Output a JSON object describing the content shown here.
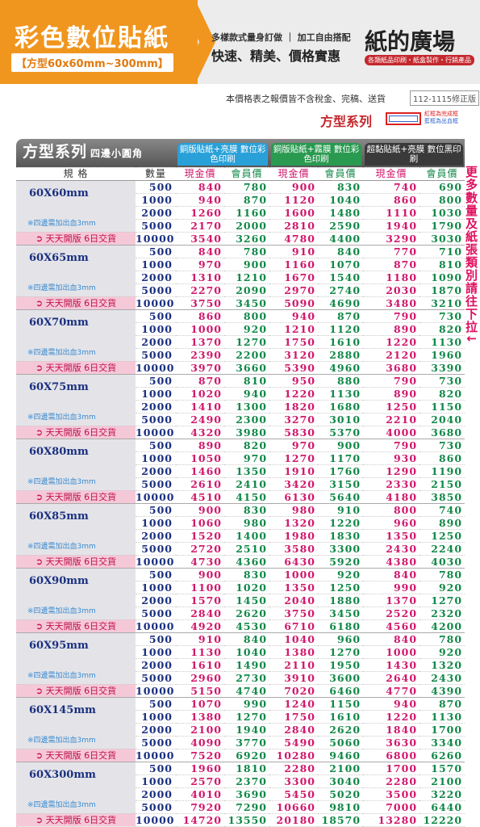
{
  "header": {
    "title": "彩色數位貼紙",
    "subtitle": "【方型60x60mm~300mm】",
    "tagline1": "多樣款式量身訂做",
    "tagline2": "加工自由搭配",
    "slogan": "快速、精美、價格實惠",
    "brand": "紙的廣場",
    "brand_sub": "各類紙品印刷・紙盒製作・行銷產品"
  },
  "notice": "本價格表之報價皆不含稅金、完稿、送貨",
  "version": "112-1115修正版",
  "series_title": "方型系列",
  "legend": [
    "紅框為完成框",
    "藍框為出血框"
  ],
  "side_note": "更多數量及紙張類別請往下拉↓",
  "table": {
    "title": "方型系列",
    "subtitle": "四邊小圓角",
    "products": [
      "銅版貼紙+亮膜 數位彩色印刷",
      "銅版貼紙+霧膜 數位彩色印刷",
      "超黏貼紙+亮膜 數位黑印刷"
    ],
    "columns": [
      "規 格",
      "數量",
      "現金價",
      "會員價",
      "現金價",
      "會員價",
      "現金價",
      "會員價"
    ],
    "groups": [
      {
        "size": "60X60mm",
        "note": "※四邊需加出血3mm",
        "delivery": "天天開版 6日交貨",
        "rows": [
          [
            500,
            840,
            780,
            900,
            830,
            740,
            690
          ],
          [
            1000,
            940,
            870,
            1120,
            1040,
            860,
            800
          ],
          [
            2000,
            1260,
            1160,
            1600,
            1480,
            1110,
            1030
          ],
          [
            5000,
            2170,
            2000,
            2810,
            2590,
            1940,
            1790
          ],
          [
            10000,
            3540,
            3260,
            4780,
            4400,
            3290,
            3030
          ]
        ]
      },
      {
        "size": "60X65mm",
        "note": "※四邊需加出血3mm",
        "delivery": "天天開版 6日交貨",
        "rows": [
          [
            500,
            840,
            780,
            910,
            840,
            770,
            710
          ],
          [
            1000,
            970,
            900,
            1160,
            1070,
            870,
            810
          ],
          [
            2000,
            1310,
            1210,
            1670,
            1540,
            1180,
            1090
          ],
          [
            5000,
            2270,
            2090,
            2970,
            2740,
            2030,
            1870
          ],
          [
            10000,
            3750,
            3450,
            5090,
            4690,
            3480,
            3210
          ]
        ]
      },
      {
        "size": "60X70mm",
        "note": "※四邊需加出血3mm",
        "delivery": "天天開版 6日交貨",
        "rows": [
          [
            500,
            860,
            800,
            940,
            870,
            790,
            730
          ],
          [
            1000,
            1000,
            920,
            1210,
            1120,
            890,
            820
          ],
          [
            2000,
            1370,
            1270,
            1750,
            1610,
            1220,
            1130
          ],
          [
            5000,
            2390,
            2200,
            3120,
            2880,
            2120,
            1960
          ],
          [
            10000,
            3970,
            3660,
            5390,
            4960,
            3680,
            3390
          ]
        ]
      },
      {
        "size": "60X75mm",
        "note": "※四邊需加出血3mm",
        "delivery": "天天開版 6日交貨",
        "rows": [
          [
            500,
            870,
            810,
            950,
            880,
            790,
            730
          ],
          [
            1000,
            1020,
            940,
            1220,
            1130,
            890,
            820
          ],
          [
            2000,
            1410,
            1300,
            1820,
            1680,
            1250,
            1150
          ],
          [
            5000,
            2490,
            2300,
            3270,
            3010,
            2210,
            2040
          ],
          [
            10000,
            4320,
            3980,
            5830,
            5370,
            4000,
            3680
          ]
        ]
      },
      {
        "size": "60X80mm",
        "note": "※四邊需加出血3mm",
        "delivery": "天天開版 6日交貨",
        "rows": [
          [
            500,
            890,
            820,
            970,
            900,
            790,
            730
          ],
          [
            1000,
            1050,
            970,
            1270,
            1170,
            930,
            860
          ],
          [
            2000,
            1460,
            1350,
            1910,
            1760,
            1290,
            1190
          ],
          [
            5000,
            2610,
            2410,
            3420,
            3150,
            2330,
            2150
          ],
          [
            10000,
            4510,
            4150,
            6130,
            5640,
            4180,
            3850
          ]
        ]
      },
      {
        "size": "60X85mm",
        "note": "※四邊需加出血3mm",
        "delivery": "天天開版 6日交貨",
        "rows": [
          [
            500,
            900,
            830,
            980,
            910,
            800,
            740
          ],
          [
            1000,
            1060,
            980,
            1320,
            1220,
            960,
            890
          ],
          [
            2000,
            1520,
            1400,
            1980,
            1830,
            1350,
            1250
          ],
          [
            5000,
            2720,
            2510,
            3580,
            3300,
            2430,
            2240
          ],
          [
            10000,
            4730,
            4360,
            6430,
            5920,
            4380,
            4030
          ]
        ]
      },
      {
        "size": "60X90mm",
        "note": "※四邊需加出血3mm",
        "delivery": "天天開版 6日交貨",
        "rows": [
          [
            500,
            900,
            830,
            1000,
            920,
            840,
            780
          ],
          [
            1000,
            1100,
            1020,
            1350,
            1250,
            990,
            920
          ],
          [
            2000,
            1570,
            1450,
            2040,
            1880,
            1370,
            1270
          ],
          [
            5000,
            2840,
            2620,
            3750,
            3450,
            2520,
            2320
          ],
          [
            10000,
            4920,
            4530,
            6710,
            6180,
            4560,
            4200
          ]
        ]
      },
      {
        "size": "60X95mm",
        "note": "※四邊需加出血3mm",
        "delivery": "天天開版 6日交貨",
        "rows": [
          [
            500,
            910,
            840,
            1040,
            960,
            840,
            780
          ],
          [
            1000,
            1130,
            1040,
            1380,
            1270,
            1000,
            920
          ],
          [
            2000,
            1610,
            1490,
            2110,
            1950,
            1430,
            1320
          ],
          [
            5000,
            2960,
            2730,
            3910,
            3600,
            2640,
            2430
          ],
          [
            10000,
            5150,
            4740,
            7020,
            6460,
            4770,
            4390
          ]
        ]
      },
      {
        "size": "60X145mm",
        "note": "※四邊需加出血3mm",
        "delivery": "天天開版 6日交貨",
        "rows": [
          [
            500,
            1070,
            990,
            1240,
            1150,
            940,
            870
          ],
          [
            1000,
            1380,
            1270,
            1750,
            1610,
            1220,
            1130
          ],
          [
            2000,
            2100,
            1940,
            2840,
            2620,
            1840,
            1700
          ],
          [
            5000,
            4090,
            3770,
            5490,
            5060,
            3630,
            3340
          ],
          [
            10000,
            7520,
            6920,
            10280,
            9460,
            6800,
            6260
          ]
        ]
      },
      {
        "size": "60X300mm",
        "note": "※四邊需加出血3mm",
        "delivery": "天天開版 6日交貨",
        "rows": [
          [
            500,
            1960,
            1810,
            2280,
            2100,
            1700,
            1570
          ],
          [
            1000,
            2570,
            2370,
            3300,
            3040,
            2280,
            2100
          ],
          [
            2000,
            4010,
            3690,
            5450,
            5020,
            3500,
            3220
          ],
          [
            5000,
            7920,
            7290,
            10660,
            9810,
            7000,
            6440
          ],
          [
            10000,
            14720,
            13550,
            20180,
            18570,
            13280,
            12220
          ]
        ]
      }
    ]
  }
}
